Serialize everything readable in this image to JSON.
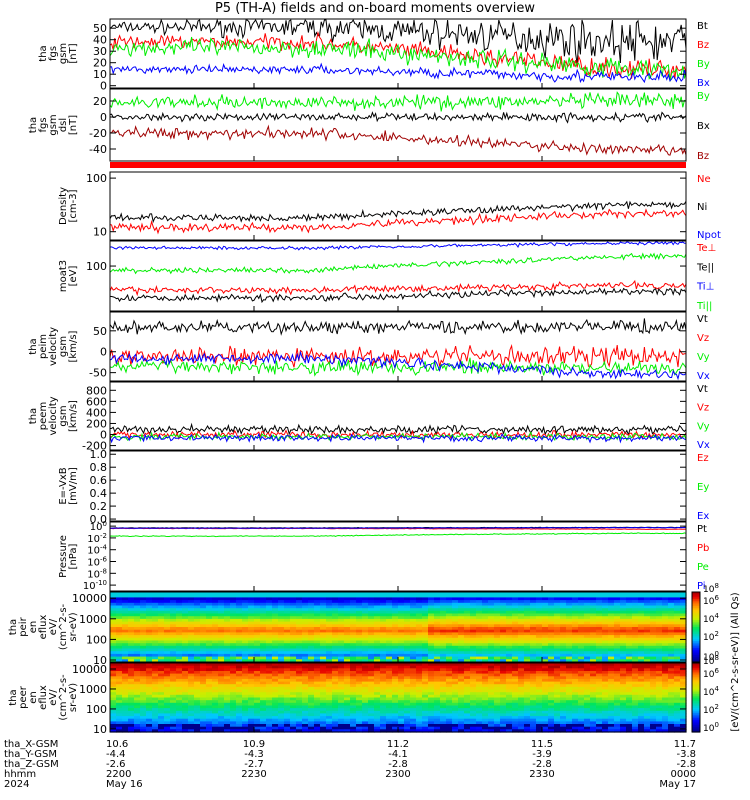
{
  "title": "P5 (TH-A) fields and on-board moments overview",
  "chart_data": [
    {
      "type": "line",
      "ylabel": [
        "tha",
        "fgs",
        "gsm",
        "[nT]"
      ],
      "yticks": [
        0,
        10,
        20,
        30,
        40,
        50
      ],
      "ylim": [
        -2,
        58
      ],
      "series": [
        {
          "name": "Bt",
          "color": "#000000",
          "start": 51,
          "end": 38,
          "noise_start": 3,
          "noise_end": 14
        },
        {
          "name": "Bz",
          "color": "#ff0000",
          "start": 38,
          "end": 14,
          "noise_start": 4,
          "noise_end": 6
        },
        {
          "name": "By",
          "color": "#00ee00",
          "start": 33,
          "end": 15,
          "noise_start": 5,
          "noise_end": 7
        },
        {
          "name": "Bx",
          "color": "#0000ff",
          "start": 14,
          "end": 7,
          "noise_start": 2,
          "noise_end": 4
        }
      ]
    },
    {
      "type": "line",
      "ylabel": [
        "tha",
        "fgs",
        "gsm",
        "dsl",
        "[nT]"
      ],
      "yticks": [
        -40,
        -20,
        0,
        20
      ],
      "ylim": [
        -55,
        35
      ],
      "series": [
        {
          "name": "By",
          "color": "#00ee00",
          "start": 18,
          "end": 20,
          "noise_start": 5,
          "noise_end": 7
        },
        {
          "name": "Bx",
          "color": "#000000",
          "start": 0,
          "end": 0,
          "noise_start": 3,
          "noise_end": 4
        },
        {
          "name": "Bz",
          "color": "#a00000",
          "start": -20,
          "end": -42,
          "noise_start": 5,
          "noise_end": 5
        }
      ]
    },
    {
      "type": "line",
      "ylabel": [
        "Density",
        "[cm-3]"
      ],
      "scale": "log",
      "yticks": [
        10,
        100
      ],
      "ylim": [
        7,
        130
      ],
      "series": [
        {
          "name": "Ne",
          "color": "#ff0000",
          "start": 12,
          "end": 22,
          "noise_start": 0.06,
          "noise_end": 0.05
        },
        {
          "name": "Ni",
          "color": "#000000",
          "start": 18,
          "end": 32,
          "noise_start": 0.05,
          "noise_end": 0.04
        },
        {
          "name": "Npot",
          "color": "#0000ff",
          "start": null,
          "end": null,
          "noise_start": 0,
          "noise_end": 0
        }
      ]
    },
    {
      "type": "line",
      "ylabel": [
        "moat3",
        "[eV]"
      ],
      "scale": "log",
      "yticks": [
        100
      ],
      "ylim": [
        18,
        260
      ],
      "series": [
        {
          "name": "Te⊥",
          "color": "#ff0000",
          "start": 40,
          "end": 48,
          "noise_start": 0.04,
          "noise_end": 0.04
        },
        {
          "name": "Te||",
          "color": "#000000",
          "start": 30,
          "end": 38,
          "noise_start": 0.04,
          "noise_end": 0.04
        },
        {
          "name": "Ti⊥",
          "color": "#0000ff",
          "start": 200,
          "end": 240,
          "noise_start": 0.02,
          "noise_end": 0.02
        },
        {
          "name": "Ti||",
          "color": "#00ee00",
          "start": 85,
          "end": 145,
          "noise_start": 0.03,
          "noise_end": 0.03
        }
      ]
    },
    {
      "type": "line",
      "ylabel": [
        "tha",
        "peim",
        "velocity",
        "gsm",
        "[km/s]"
      ],
      "yticks": [
        -50,
        0,
        50
      ],
      "ylim": [
        -70,
        95
      ],
      "series": [
        {
          "name": "Vt",
          "color": "#000000",
          "start": 58,
          "end": 60,
          "noise_start": 10,
          "noise_end": 10
        },
        {
          "name": "Vz",
          "color": "#ff0000",
          "start": -12,
          "end": -10,
          "noise_start": 14,
          "noise_end": 16
        },
        {
          "name": "Vy",
          "color": "#00ee00",
          "start": -35,
          "end": -40,
          "noise_start": 12,
          "noise_end": 12
        },
        {
          "name": "Vx",
          "color": "#0000ff",
          "start": -15,
          "end": -55,
          "noise_start": 10,
          "noise_end": 8
        }
      ]
    },
    {
      "type": "line",
      "ylabel": [
        "tha",
        "peem",
        "velocity",
        "gsm",
        "[km/s]"
      ],
      "yticks": [
        -200,
        0,
        200,
        400,
        600,
        800
      ],
      "ylim": [
        -280,
        950
      ],
      "series": [
        {
          "name": "Vt",
          "color": "#000000",
          "start": 90,
          "end": 90,
          "noise_start": 50,
          "noise_end": 50
        },
        {
          "name": "Vz",
          "color": "#ff0000",
          "start": 0,
          "end": 0,
          "noise_start": 40,
          "noise_end": 40
        },
        {
          "name": "Vy",
          "color": "#00ee00",
          "start": -40,
          "end": -40,
          "noise_start": 40,
          "noise_end": 40
        },
        {
          "name": "Vx",
          "color": "#0000ff",
          "start": -60,
          "end": -70,
          "noise_start": 40,
          "noise_end": 40
        }
      ]
    },
    {
      "type": "line",
      "ylabel": [
        "E=-VxB",
        "[mV/m]"
      ],
      "yticks": [
        0.0,
        0.2,
        0.4,
        0.6,
        0.8,
        1.0
      ],
      "tick_labels": [
        "0.0",
        "0.2",
        "0.4",
        "0.6",
        "0.8",
        "1.0"
      ],
      "ylim": [
        -0.03,
        1.05
      ],
      "series": [
        {
          "name": "Ez",
          "color": "#ff0000",
          "start": null,
          "end": null
        },
        {
          "name": "Ey",
          "color": "#00ee00",
          "start": null,
          "end": null
        },
        {
          "name": "Ex",
          "color": "#0000ff",
          "start": null,
          "end": null
        }
      ]
    },
    {
      "type": "line",
      "ylabel": [
        "Pressure",
        "[nPa]"
      ],
      "scale": "log",
      "yticks": [
        1e-10,
        1e-08,
        1e-06,
        0.0001,
        0.01,
        1
      ],
      "tick_labels": [
        [
          "10",
          "-10"
        ],
        [
          "10",
          "-8"
        ],
        [
          "10",
          "-6"
        ],
        [
          "10",
          "-4"
        ],
        [
          "10",
          "-2"
        ],
        [
          "10",
          "0"
        ]
      ],
      "ylim": [
        1e-11,
        5
      ],
      "series": [
        {
          "name": "Pt",
          "color": "#000000",
          "start": 0.5,
          "end": 0.6,
          "noise_start": 0.03,
          "noise_end": 0.03
        },
        {
          "name": "Pb",
          "color": "#ff0000",
          "start": 0.4,
          "end": 0.3,
          "noise_start": 0.03,
          "noise_end": 0.03
        },
        {
          "name": "Pe",
          "color": "#00ee00",
          "start": 0.02,
          "end": 0.06,
          "noise_start": 0.05,
          "noise_end": 0.05
        },
        {
          "name": "Pi",
          "color": "#0000ff",
          "start": 0.45,
          "end": 0.55,
          "noise_start": 0.03,
          "noise_end": 0.03
        }
      ]
    },
    {
      "type": "heatmap",
      "ylabel": [
        "tha",
        "peir",
        "en",
        "eflux",
        "eV/",
        "(cm^2-s-",
        "sr-eV)"
      ],
      "scale": "log",
      "yticks": [
        10,
        100,
        1000,
        10000
      ],
      "ylim": [
        8,
        20000
      ]
    },
    {
      "type": "heatmap",
      "ylabel": [
        "tha",
        "peer",
        "en",
        "eflux",
        "eV/",
        "(cm^2-s-",
        "sr-eV)"
      ],
      "scale": "log",
      "yticks": [
        10,
        100,
        1000,
        10000
      ],
      "ylim": [
        7,
        20000
      ]
    }
  ],
  "colorbar": {
    "label": "[eV/(cm^2-s-sr-eV)] (All Qs)",
    "ticks": [
      [
        "10",
        "0"
      ],
      [
        "10",
        "2"
      ],
      [
        "10",
        "4"
      ],
      [
        "10",
        "6"
      ],
      [
        "10",
        "8"
      ],
      [
        "10",
        "0"
      ],
      [
        "10",
        "2"
      ],
      [
        "10",
        "4"
      ],
      [
        "10",
        "6"
      ],
      [
        "10",
        "8"
      ]
    ]
  },
  "time_axis": {
    "rows": [
      {
        "label": "tha_X-GSM",
        "values": [
          "10.6",
          "10.9",
          "11.2",
          "11.5",
          "11.7"
        ]
      },
      {
        "label": "tha_Y-GSM",
        "values": [
          "-4.4",
          "-4.3",
          "-4.1",
          "-3.9",
          "-3.8"
        ]
      },
      {
        "label": "tha_Z-GSM",
        "values": [
          "-2.6",
          "-2.7",
          "-2.8",
          "-2.8",
          "-2.8"
        ]
      },
      {
        "label": "hhmm",
        "values": [
          "2200",
          "2230",
          "2300",
          "2330",
          "0000"
        ]
      },
      {
        "label": "2024",
        "values": [
          "May 16",
          "",
          "",
          "",
          "May 17"
        ]
      }
    ]
  }
}
